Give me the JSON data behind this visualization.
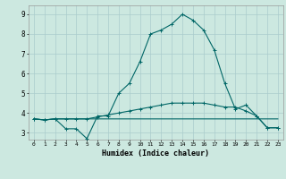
{
  "background_color": "#cce8e0",
  "grid_color": "#aacccc",
  "line_color": "#006666",
  "xlabel": "Humidex (Indice chaleur)",
  "xlim": [
    -0.5,
    23.5
  ],
  "ylim": [
    2.65,
    9.45
  ],
  "xtick_labels": [
    "0",
    "1",
    "2",
    "3",
    "4",
    "5",
    "6",
    "7",
    "8",
    "9",
    "10",
    "11",
    "12",
    "13",
    "14",
    "15",
    "16",
    "17",
    "18",
    "19",
    "20",
    "21",
    "22",
    "23"
  ],
  "ytick_vals": [
    3,
    4,
    5,
    6,
    7,
    8,
    9
  ],
  "line1_x": [
    0,
    1,
    2,
    3,
    4,
    5,
    6,
    7,
    8,
    9,
    10,
    11,
    12,
    13,
    14,
    15,
    16,
    17,
    18,
    19,
    20,
    21,
    22,
    23
  ],
  "line1_y": [
    3.7,
    3.65,
    3.7,
    3.7,
    3.7,
    3.7,
    3.7,
    3.7,
    3.7,
    3.7,
    3.7,
    3.7,
    3.7,
    3.7,
    3.7,
    3.7,
    3.7,
    3.7,
    3.7,
    3.7,
    3.7,
    3.7,
    3.7,
    3.7
  ],
  "line2_x": [
    0,
    1,
    2,
    3,
    4,
    5,
    6,
    7,
    8,
    9,
    10,
    11,
    12,
    13,
    14,
    15,
    16,
    17,
    18,
    19,
    20,
    21,
    22,
    23
  ],
  "line2_y": [
    3.7,
    3.65,
    3.7,
    3.2,
    3.2,
    2.7,
    3.85,
    3.85,
    5.0,
    5.5,
    6.6,
    8.0,
    8.2,
    8.5,
    9.0,
    8.7,
    8.2,
    7.2,
    5.5,
    4.2,
    4.4,
    3.85,
    3.25,
    3.25
  ],
  "line3_x": [
    0,
    1,
    2,
    3,
    4,
    5,
    6,
    7,
    8,
    9,
    10,
    11,
    12,
    13,
    14,
    15,
    16,
    17,
    18,
    19,
    20,
    21,
    22,
    23
  ],
  "line3_y": [
    3.7,
    3.65,
    3.7,
    3.7,
    3.7,
    3.7,
    3.8,
    3.9,
    4.0,
    4.1,
    4.2,
    4.3,
    4.4,
    4.5,
    4.5,
    4.5,
    4.5,
    4.4,
    4.3,
    4.3,
    4.1,
    3.85,
    3.25,
    3.25
  ]
}
